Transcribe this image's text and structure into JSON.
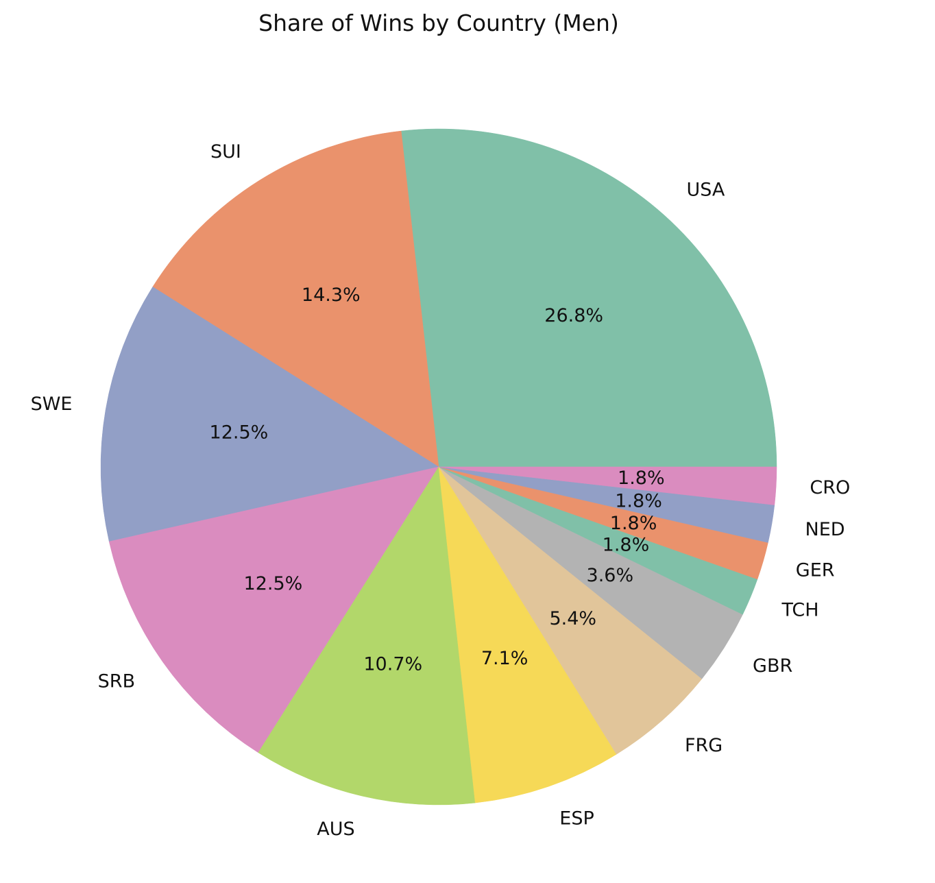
{
  "chart_data": {
    "type": "pie",
    "title": "Share of Wins by Country (Men)",
    "start_angle_deg": 0,
    "direction": "counterclockwise",
    "slices": [
      {
        "label": "USA",
        "value": 26.8,
        "pct_label": "26.8%",
        "color": "#80c0a8"
      },
      {
        "label": "SUI",
        "value": 14.3,
        "pct_label": "14.3%",
        "color": "#ea926c"
      },
      {
        "label": "SWE",
        "value": 12.5,
        "pct_label": "12.5%",
        "color": "#929fc6"
      },
      {
        "label": "SRB",
        "value": 12.5,
        "pct_label": "12.5%",
        "color": "#da8cbf"
      },
      {
        "label": "AUS",
        "value": 10.7,
        "pct_label": "10.7%",
        "color": "#b2d76a"
      },
      {
        "label": "ESP",
        "value": 7.1,
        "pct_label": "7.1%",
        "color": "#f6d957"
      },
      {
        "label": "FRG",
        "value": 5.4,
        "pct_label": "5.4%",
        "color": "#e1c59a"
      },
      {
        "label": "GBR",
        "value": 3.6,
        "pct_label": "3.6%",
        "color": "#b3b3b3"
      },
      {
        "label": "TCH",
        "value": 1.8,
        "pct_label": "1.8%",
        "color": "#80c0a8"
      },
      {
        "label": "GER",
        "value": 1.8,
        "pct_label": "1.8%",
        "color": "#ea926c"
      },
      {
        "label": "NED",
        "value": 1.8,
        "pct_label": "1.8%",
        "color": "#929fc6"
      },
      {
        "label": "CRO",
        "value": 1.8,
        "pct_label": "1.8%",
        "color": "#da8cbf"
      }
    ]
  }
}
